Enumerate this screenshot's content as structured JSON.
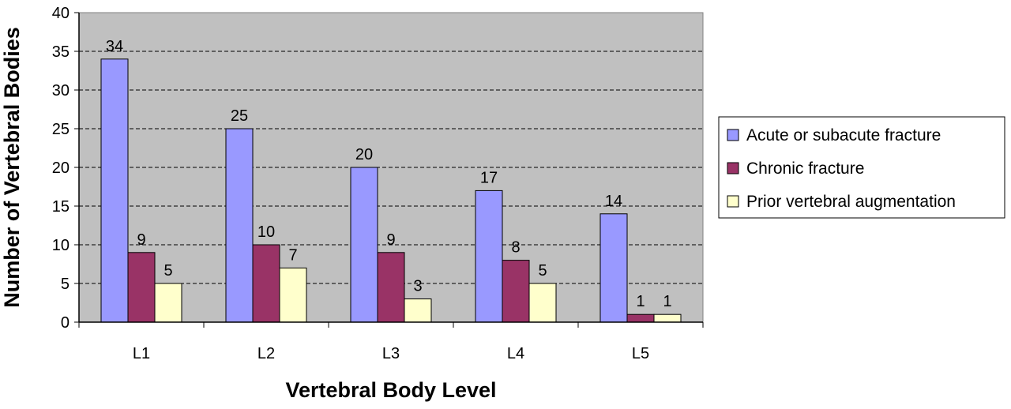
{
  "chart_data": {
    "type": "bar",
    "categories": [
      "L1",
      "L2",
      "L3",
      "L4",
      "L5"
    ],
    "series": [
      {
        "name": "Acute or subacute fracture",
        "values": [
          34,
          25,
          20,
          17,
          14
        ],
        "color": "#9999ff"
      },
      {
        "name": "Chronic fracture",
        "values": [
          9,
          10,
          9,
          8,
          1
        ],
        "color": "#993366"
      },
      {
        "name": "Prior vertebral augmentation",
        "values": [
          5,
          7,
          3,
          5,
          1
        ],
        "color": "#ffffcc"
      }
    ],
    "xlabel": "Vertebral Body Level",
    "ylabel": "Number of Vertebral Bodies",
    "ylim": [
      0,
      40
    ],
    "yticks": [
      0,
      5,
      10,
      15,
      20,
      25,
      30,
      35,
      40
    ],
    "grid": true,
    "grid_style": "dashed",
    "plot_background": "#c0c0c0",
    "legend_position": "right",
    "data_labels": true
  }
}
